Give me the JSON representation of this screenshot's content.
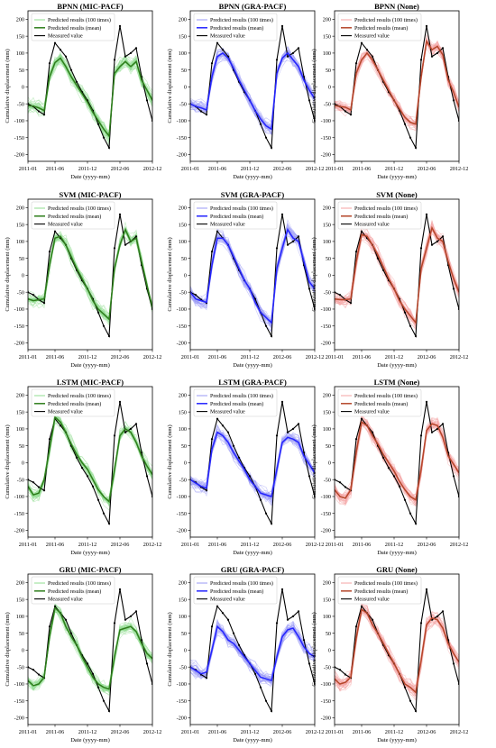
{
  "figure": {
    "background": "#ffffff"
  },
  "shared": {
    "xlabel": "Date (yyyy-mm)",
    "ylabel": "Cumulative displacement (mm)",
    "xtick_labels": [
      "2011-01",
      "2011-06",
      "2011-12",
      "2012-06",
      "2012-12"
    ],
    "xtick_months": [
      1,
      6,
      12,
      18,
      24
    ],
    "yticks": [
      -200,
      -150,
      -100,
      -50,
      0,
      50,
      100,
      150,
      200
    ],
    "ylim": [
      -220,
      225
    ],
    "xlim": [
      1,
      24
    ],
    "legend": [
      "Predicted results (100 times)",
      "Predicted results (mean)",
      "Measured value"
    ],
    "legend_position": "top-left"
  },
  "chart_data": {
    "type": "line",
    "months": [
      1,
      2,
      3,
      4,
      5,
      6,
      7,
      8,
      9,
      10,
      11,
      12,
      13,
      14,
      15,
      16,
      17,
      18,
      19,
      20,
      21,
      22,
      23,
      24
    ],
    "measured": [
      -50,
      -58,
      -72,
      -82,
      70,
      130,
      110,
      90,
      50,
      15,
      -15,
      -40,
      -70,
      -110,
      -150,
      -180,
      80,
      180,
      90,
      100,
      115,
      30,
      -40,
      -100
    ],
    "panels": [
      {
        "title": "BPNN (MIC-PACF)",
        "color": "#2e7d1b",
        "band": "#8fdc8f",
        "mean": [
          -55,
          -57,
          -62,
          -70,
          30,
          72,
          85,
          60,
          30,
          5,
          -20,
          -45,
          -75,
          -100,
          -125,
          -145,
          40,
          60,
          75,
          60,
          75,
          20,
          -10,
          -40
        ]
      },
      {
        "title": "BPNN (GRA-PACF)",
        "color": "#2424ff",
        "band": "#9a9af5",
        "mean": [
          -50,
          -58,
          -62,
          -68,
          30,
          90,
          100,
          85,
          55,
          20,
          -10,
          -40,
          -70,
          -95,
          -115,
          -125,
          40,
          85,
          100,
          80,
          60,
          20,
          -10,
          -35
        ]
      },
      {
        "title": "BPNN (None)",
        "color": "#b5462a",
        "band": "#f4a3a3",
        "mean": [
          -55,
          -58,
          -60,
          -68,
          40,
          80,
          100,
          80,
          50,
          20,
          -10,
          -40,
          -65,
          -90,
          -105,
          -110,
          30,
          135,
          110,
          120,
          95,
          20,
          -15,
          -60
        ]
      },
      {
        "title": "SVM (MIC-PACF)",
        "color": "#2e7d1b",
        "band": "#8fdc8f",
        "mean": [
          -70,
          -75,
          -72,
          -70,
          30,
          110,
          115,
          90,
          55,
          20,
          -10,
          -40,
          -75,
          -100,
          -115,
          -130,
          20,
          90,
          135,
          100,
          110,
          40,
          -30,
          -95
        ]
      },
      {
        "title": "SVM (GRA-PACF)",
        "color": "#2424ff",
        "band": "#9a9af5",
        "mean": [
          -50,
          -70,
          -75,
          -80,
          30,
          110,
          110,
          90,
          55,
          20,
          -15,
          -40,
          -80,
          -110,
          -125,
          -140,
          20,
          80,
          135,
          110,
          100,
          40,
          -20,
          -40
        ]
      },
      {
        "title": "SVM (None)",
        "color": "#b5462a",
        "band": "#f4a3a3",
        "mean": [
          -70,
          -72,
          -72,
          -70,
          40,
          120,
          115,
          90,
          60,
          25,
          -10,
          -40,
          -75,
          -100,
          -120,
          -140,
          20,
          80,
          140,
          110,
          100,
          40,
          -10,
          -50
        ]
      },
      {
        "title": "LSTM (MIC-PACF)",
        "color": "#2e7d1b",
        "band": "#8fdc8f",
        "mean": [
          -70,
          -95,
          -90,
          -50,
          40,
          135,
          120,
          90,
          55,
          25,
          0,
          -20,
          -50,
          -80,
          -100,
          -115,
          -20,
          80,
          100,
          90,
          60,
          20,
          -10,
          -35
        ]
      },
      {
        "title": "LSTM (GRA-PACF)",
        "color": "#2424ff",
        "band": "#9a9af5",
        "mean": [
          -50,
          -60,
          -70,
          -75,
          40,
          90,
          80,
          60,
          30,
          5,
          -20,
          -50,
          -70,
          -90,
          -95,
          -100,
          -20,
          60,
          75,
          70,
          60,
          20,
          -5,
          -30
        ]
      },
      {
        "title": "LSTM (None)",
        "color": "#b5462a",
        "band": "#f4a3a3",
        "mean": [
          -80,
          -100,
          -105,
          -80,
          30,
          120,
          110,
          80,
          55,
          25,
          0,
          -25,
          -55,
          -80,
          -100,
          -110,
          -20,
          95,
          115,
          110,
          75,
          20,
          -5,
          -30
        ]
      },
      {
        "title": "GRU (MIC-PACF)",
        "color": "#2e7d1b",
        "band": "#8fdc8f",
        "mean": [
          -90,
          -105,
          -100,
          -80,
          40,
          125,
          110,
          70,
          40,
          15,
          -20,
          -50,
          -80,
          -100,
          -110,
          -115,
          -20,
          60,
          65,
          70,
          55,
          20,
          -10,
          -25
        ]
      },
      {
        "title": "GRU (GRA-PACF)",
        "color": "#2424ff",
        "band": "#9a9af5",
        "mean": [
          -50,
          -60,
          -70,
          -65,
          0,
          70,
          55,
          30,
          20,
          0,
          -20,
          -40,
          -60,
          -80,
          -85,
          -90,
          -20,
          40,
          60,
          65,
          40,
          10,
          -10,
          -20
        ]
      },
      {
        "title": "GRU (None)",
        "color": "#b5462a",
        "band": "#f4a3a3",
        "mean": [
          -85,
          -100,
          -95,
          -80,
          35,
          120,
          110,
          75,
          50,
          20,
          -10,
          -40,
          -70,
          -100,
          -110,
          -125,
          -30,
          75,
          95,
          90,
          65,
          20,
          -10,
          -35
        ]
      }
    ]
  }
}
